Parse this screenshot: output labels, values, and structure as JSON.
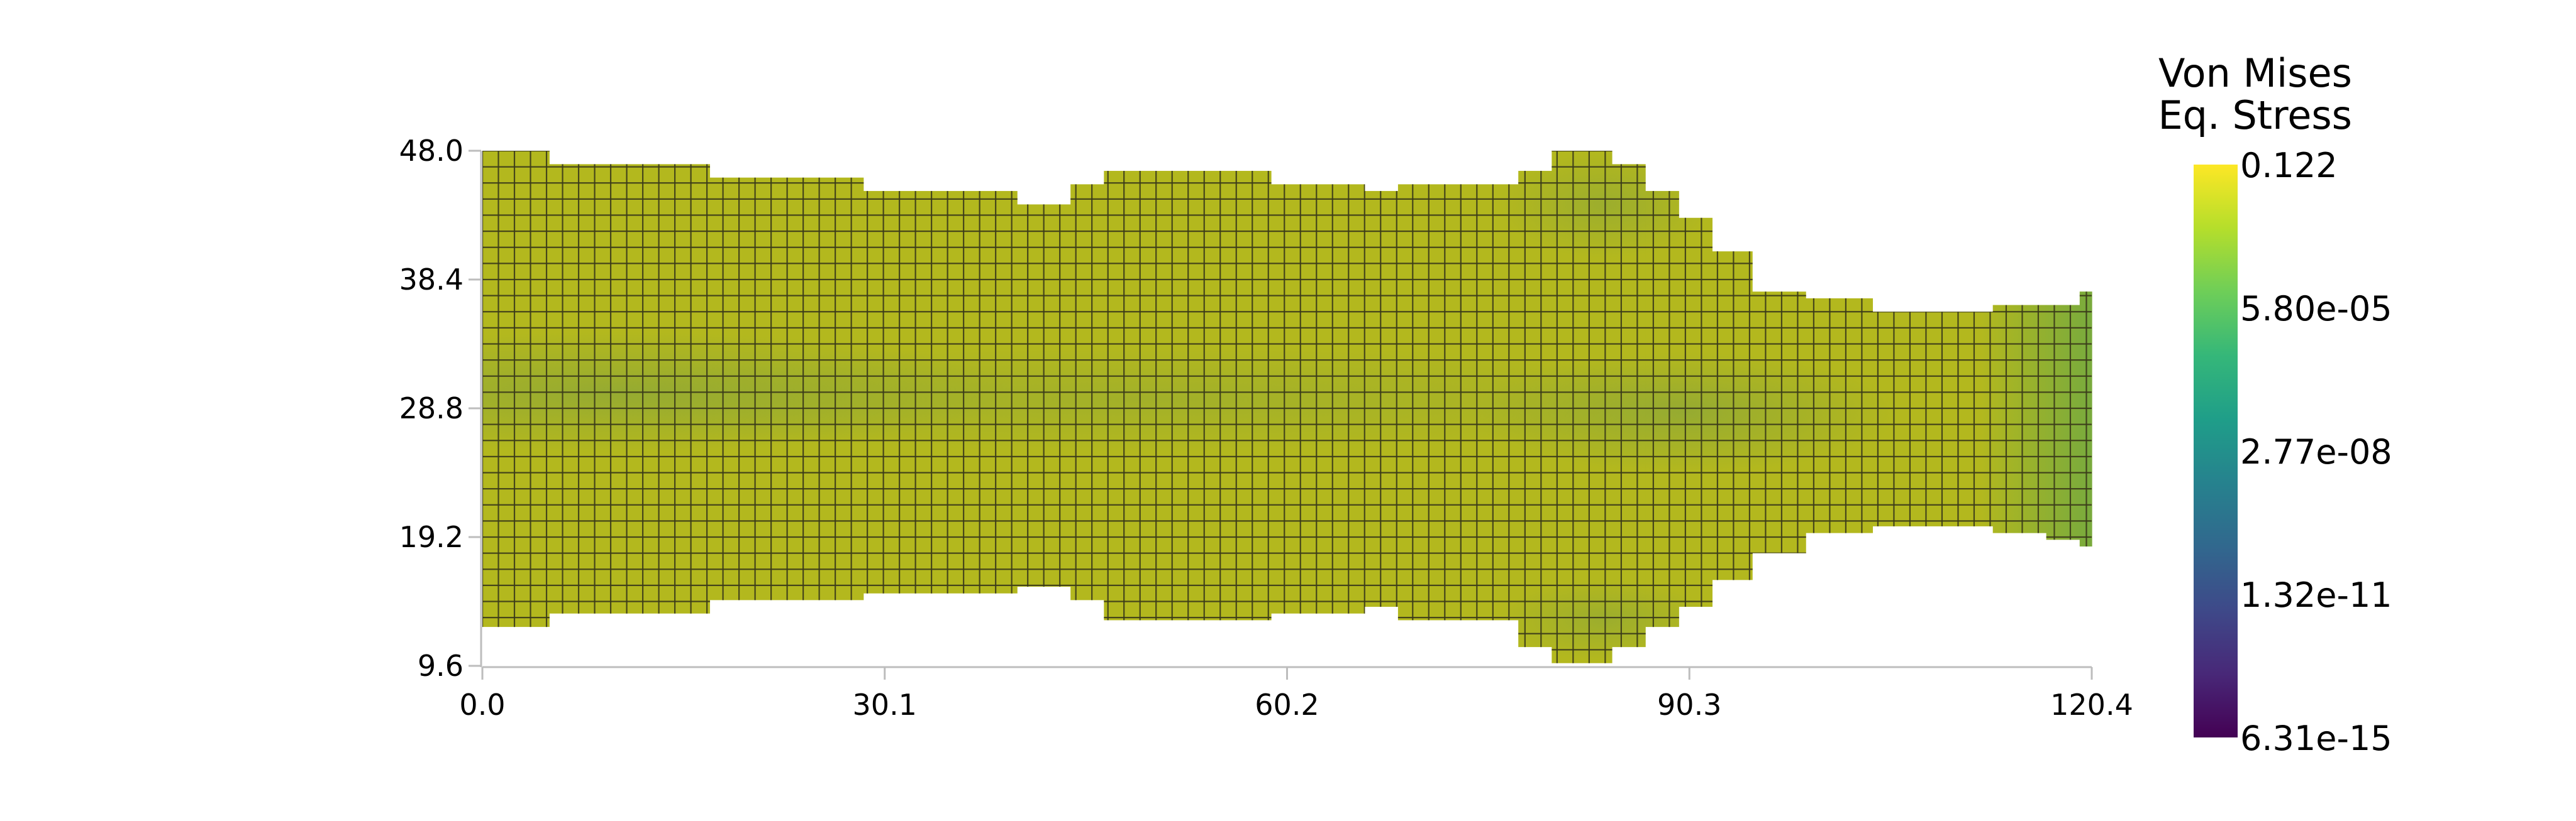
{
  "chart_data": {
    "type": "heatmap",
    "title": "",
    "xlabel": "",
    "ylabel": "",
    "xlim": [
      0.0,
      120.4
    ],
    "ylim": [
      9.6,
      48.0
    ],
    "x_ticks": [
      "0.0",
      "30.1",
      "60.2",
      "90.3",
      "120.4"
    ],
    "y_ticks": [
      "48.0",
      "38.4",
      "28.8",
      "19.2",
      "9.6"
    ],
    "grid": false,
    "mesh": {
      "cell_size": 1.2,
      "outline_color": "#3a3a1a",
      "sections": [
        {
          "x": [
            0.0,
            5.0
          ],
          "y": [
            12.5,
            48.0
          ]
        },
        {
          "x": [
            5.0,
            17.0
          ],
          "y": [
            13.5,
            47.0
          ]
        },
        {
          "x": [
            17.0,
            28.5
          ],
          "y": [
            14.5,
            46.0
          ]
        },
        {
          "x": [
            28.5,
            40.0
          ],
          "y": [
            15.0,
            45.0
          ]
        },
        {
          "x": [
            40.0,
            44.0
          ],
          "y": [
            15.5,
            44.0
          ]
        },
        {
          "x": [
            44.0,
            46.5
          ],
          "y": [
            14.5,
            45.5
          ]
        },
        {
          "x": [
            46.5,
            59.0
          ],
          "y": [
            13.0,
            46.5
          ]
        },
        {
          "x": [
            59.0,
            66.0
          ],
          "y": [
            13.5,
            45.5
          ]
        },
        {
          "x": [
            66.0,
            68.5
          ],
          "y": [
            14.0,
            45.0
          ]
        },
        {
          "x": [
            68.5,
            77.5
          ],
          "y": [
            13.0,
            45.5
          ]
        },
        {
          "x": [
            77.5,
            80.0
          ],
          "y": [
            11.0,
            46.5
          ]
        },
        {
          "x": [
            80.0,
            84.5
          ],
          "y": [
            9.8,
            48.0
          ]
        },
        {
          "x": [
            84.5,
            87.0
          ],
          "y": [
            11.0,
            47.0
          ]
        },
        {
          "x": [
            87.0,
            89.5
          ],
          "y": [
            12.5,
            45.0
          ]
        },
        {
          "x": [
            89.5,
            92.0
          ],
          "y": [
            14.0,
            43.0
          ]
        },
        {
          "x": [
            92.0,
            95.0
          ],
          "y": [
            16.0,
            40.5
          ]
        },
        {
          "x": [
            95.0,
            99.0
          ],
          "y": [
            18.0,
            37.5
          ]
        },
        {
          "x": [
            99.0,
            104.0
          ],
          "y": [
            19.5,
            37.0
          ]
        },
        {
          "x": [
            104.0,
            113.0
          ],
          "y": [
            20.0,
            36.0
          ]
        },
        {
          "x": [
            113.0,
            117.0
          ],
          "y": [
            19.5,
            36.5
          ]
        },
        {
          "x": [
            117.0,
            119.5
          ],
          "y": [
            19.0,
            36.5
          ]
        },
        {
          "x": [
            119.5,
            120.4
          ],
          "y": [
            18.5,
            37.5
          ]
        }
      ]
    },
    "colorbar": {
      "title_lines": [
        "Von Mises",
        "Eq. Stress"
      ],
      "labels": [
        "0.122",
        "5.80e-05",
        "2.77e-08",
        "1.32e-11",
        "6.31e-15"
      ],
      "scale": "log",
      "colormap": "viridis",
      "colors": [
        "#fde725",
        "#5ec962",
        "#21918c",
        "#3b528b",
        "#440154"
      ]
    },
    "field_colors": {
      "base": "#b3b81e",
      "band_center": "#8fa83a",
      "right_edge": "#6ea843"
    }
  }
}
